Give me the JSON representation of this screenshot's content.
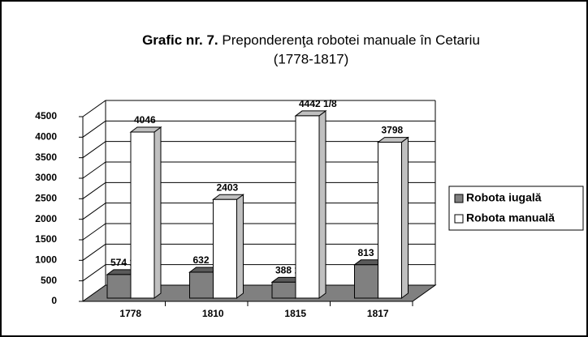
{
  "chart_data": {
    "type": "bar3d",
    "title_parts": [
      "Grafic nr. 7.",
      "Preponderenţa robotei manuale în Cetariu",
      "(1778-1817)"
    ],
    "categories": [
      "1778",
      "1810",
      "1815",
      "1817"
    ],
    "series": [
      {
        "name": "Robota iugală",
        "color": "#808080",
        "values": [
          574.333,
          632,
          388.125,
          813
        ],
        "value_labels": [
          "574  1/3",
          "632",
          "388 1/8",
          "813"
        ]
      },
      {
        "name": "Robota manuală",
        "color": "#ffffff",
        "values": [
          4046,
          2403,
          4442.125,
          3798
        ],
        "value_labels": [
          "4046",
          "2403",
          "4442 1/8",
          "3798"
        ]
      }
    ],
    "ylim": [
      0,
      4500
    ],
    "yticks": [
      0,
      500,
      1000,
      1500,
      2000,
      2500,
      3000,
      3500,
      4000,
      4500
    ],
    "grid": true,
    "floor_color": "#808080",
    "legend": "right"
  }
}
